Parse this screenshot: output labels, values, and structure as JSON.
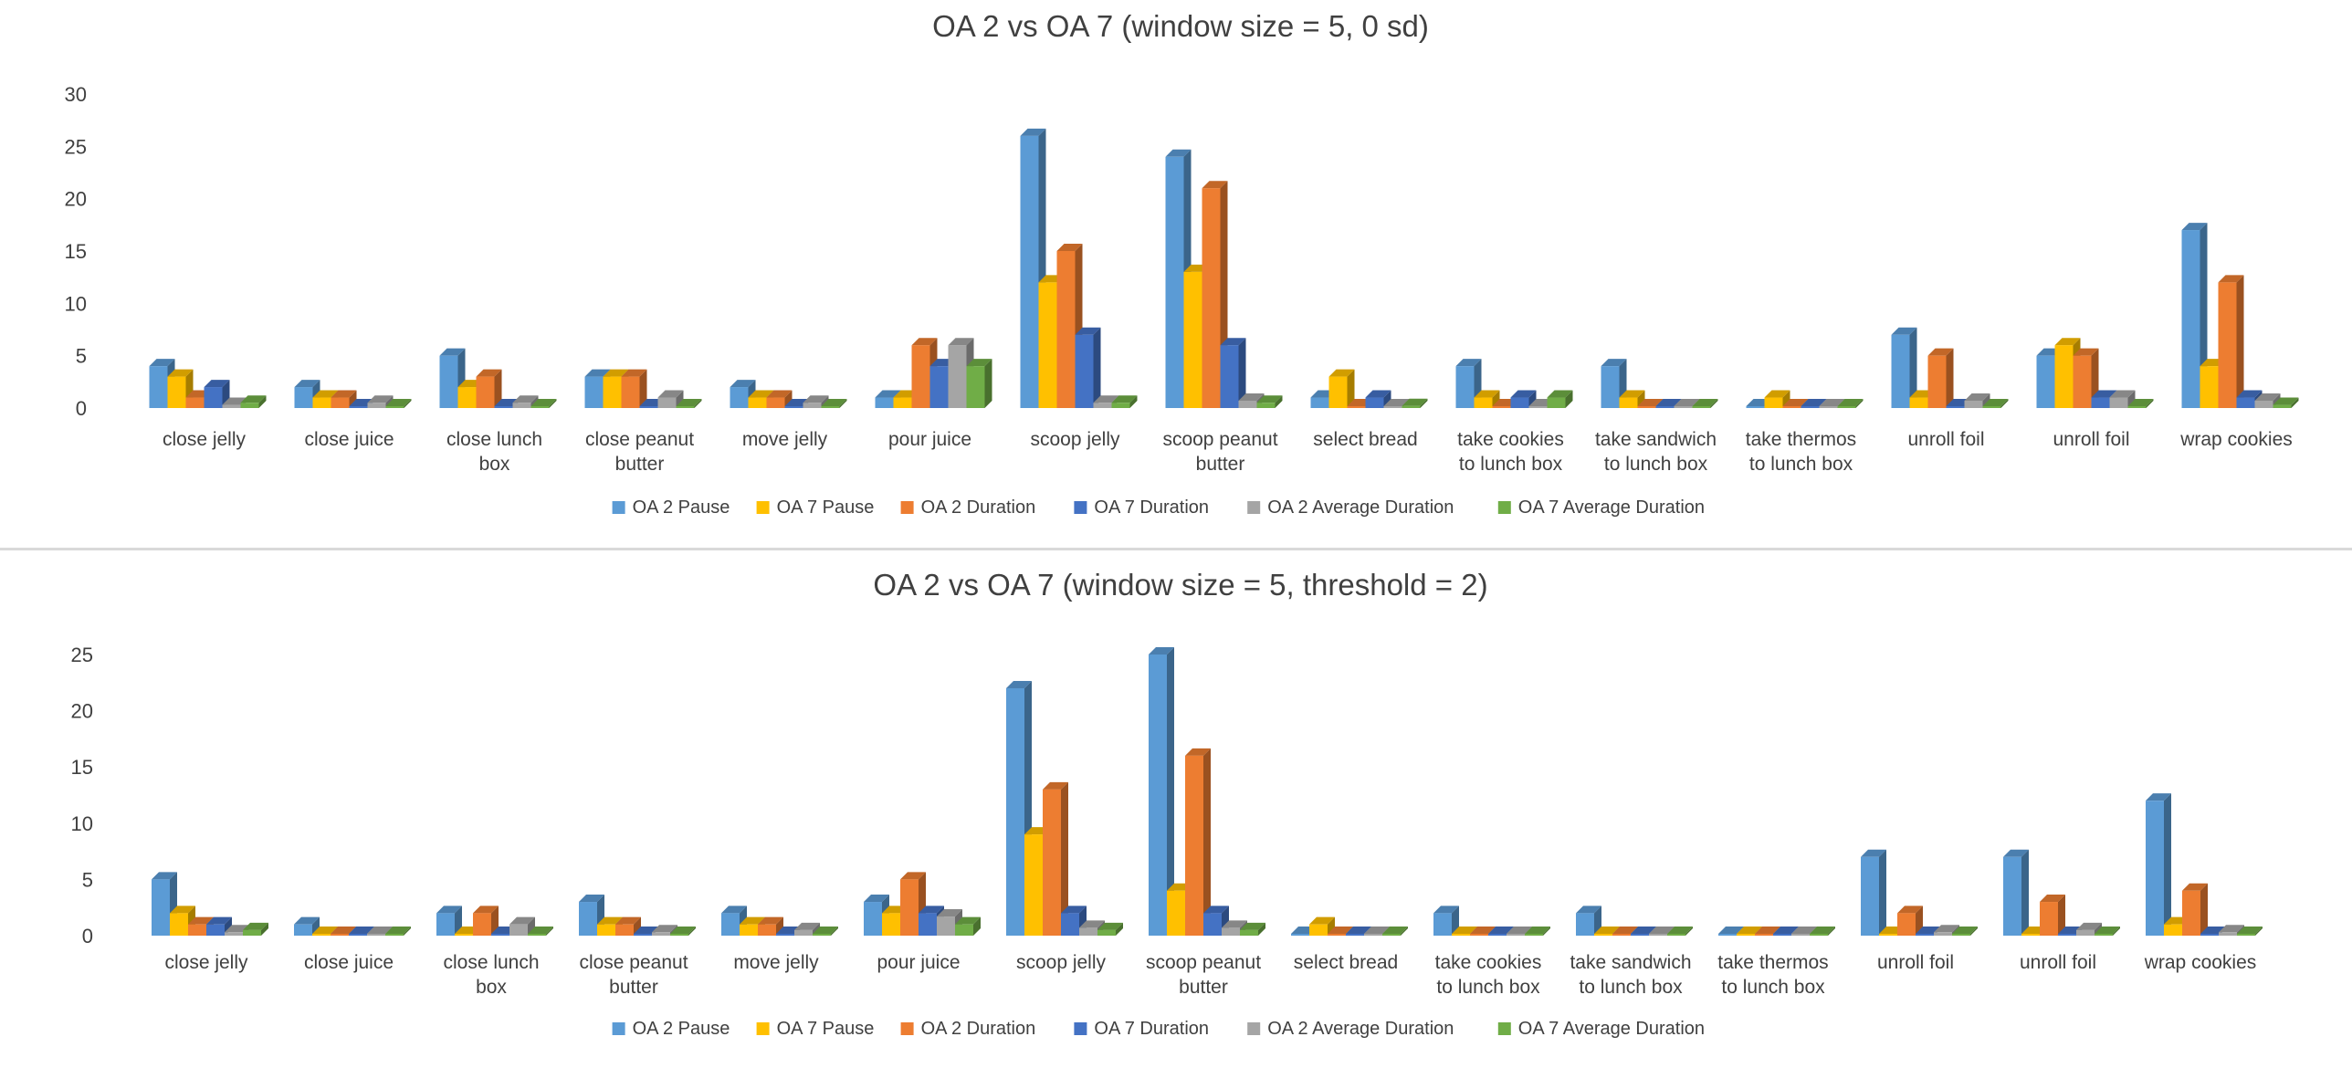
{
  "chart_data": [
    {
      "type": "bar",
      "style": "3d-clustered-column",
      "title": "OA 2 vs OA 7 (window size = 5, 0 sd)",
      "xlabel": "",
      "ylabel": "",
      "ylim": [
        0,
        30
      ],
      "yticks": [
        0,
        5,
        10,
        15,
        20,
        25,
        30
      ],
      "grid": false,
      "legend": "bottom",
      "categories": [
        "close jelly",
        "close juice",
        "close lunch box",
        "close peanut butter",
        "move jelly",
        "pour juice",
        "scoop jelly",
        "scoop peanut butter",
        "select bread",
        "take cookies to lunch box",
        "take sandwich to lunch box",
        "take thermos to lunch box",
        "unroll foil",
        "unroll foil",
        "wrap cookies"
      ],
      "category_lines": [
        [
          "close jelly"
        ],
        [
          "close juice"
        ],
        [
          "close lunch",
          "box"
        ],
        [
          "close peanut",
          "butter"
        ],
        [
          "move jelly"
        ],
        [
          "pour juice"
        ],
        [
          "scoop jelly"
        ],
        [
          "scoop peanut",
          "butter"
        ],
        [
          "select bread"
        ],
        [
          "take cookies",
          "to lunch box"
        ],
        [
          "take sandwich",
          "to lunch box"
        ],
        [
          "take thermos",
          "to lunch box"
        ],
        [
          "unroll foil"
        ],
        [
          "unroll foil"
        ],
        [
          "wrap cookies"
        ]
      ],
      "series": [
        {
          "name": "OA 2 Pause",
          "color": "#5B9BD5",
          "values": [
            4,
            2,
            5,
            3,
            2,
            1,
            26,
            24,
            1,
            4,
            4,
            0,
            7,
            5,
            17
          ]
        },
        {
          "name": "OA 7 Pause",
          "color": "#FFC000",
          "values": [
            3,
            1,
            2,
            3,
            1,
            1,
            12,
            13,
            3,
            1,
            1,
            1,
            1,
            6,
            4
          ]
        },
        {
          "name": "OA 2 Duration",
          "color": "#ED7D31",
          "values": [
            1,
            1,
            3,
            3,
            1,
            6,
            15,
            21,
            0,
            0,
            0,
            0,
            5,
            5,
            12
          ]
        },
        {
          "name": "OA 7 Duration",
          "color": "#4472C4",
          "values": [
            2,
            0,
            0,
            0,
            0,
            4,
            7,
            6,
            1,
            1,
            0,
            0,
            0,
            1,
            1
          ]
        },
        {
          "name": "OA 2 Average Duration",
          "color": "#A5A5A5",
          "values": [
            0.3,
            0.5,
            0.5,
            1,
            0.5,
            6,
            0.5,
            0.7,
            0,
            0,
            0,
            0,
            0.7,
            1,
            0.7
          ]
        },
        {
          "name": "OA 7 Average Duration",
          "color": "#70AD47",
          "values": [
            0.5,
            0,
            0,
            0,
            0,
            4,
            0.5,
            0.5,
            0.2,
            1,
            0,
            0,
            0,
            0,
            0.3
          ]
        }
      ]
    },
    {
      "type": "bar",
      "style": "3d-clustered-column",
      "title": "OA 2 vs OA 7 (window size = 5, threshold = 2)",
      "xlabel": "",
      "ylabel": "",
      "ylim": [
        0,
        25
      ],
      "yticks": [
        0,
        5,
        10,
        15,
        20,
        25
      ],
      "grid": false,
      "legend": "bottom",
      "categories": [
        "close jelly",
        "close juice",
        "close lunch box",
        "close peanut butter",
        "move jelly",
        "pour juice",
        "scoop jelly",
        "scoop peanut butter",
        "select bread",
        "take cookies to lunch box",
        "take sandwich to lunch box",
        "take thermos to lunch box",
        "unroll foil",
        "unroll foil",
        "wrap cookies"
      ],
      "category_lines": [
        [
          "close jelly"
        ],
        [
          "close juice"
        ],
        [
          "close lunch",
          "box"
        ],
        [
          "close peanut",
          "butter"
        ],
        [
          "move jelly"
        ],
        [
          "pour juice"
        ],
        [
          "scoop jelly"
        ],
        [
          "scoop peanut",
          "butter"
        ],
        [
          "select bread"
        ],
        [
          "take cookies",
          "to lunch box"
        ],
        [
          "take sandwich",
          "to lunch box"
        ],
        [
          "take thermos",
          "to lunch box"
        ],
        [
          "unroll foil"
        ],
        [
          "unroll foil"
        ],
        [
          "wrap cookies"
        ]
      ],
      "series": [
        {
          "name": "OA 2 Pause",
          "color": "#5B9BD5",
          "values": [
            5,
            1,
            2,
            3,
            2,
            3,
            22,
            25,
            0,
            2,
            2,
            0,
            7,
            7,
            12
          ]
        },
        {
          "name": "OA 7 Pause",
          "color": "#FFC000",
          "values": [
            2,
            0,
            0,
            1,
            1,
            2,
            9,
            4,
            1,
            0,
            0,
            0,
            0,
            0,
            1
          ]
        },
        {
          "name": "OA 2 Duration",
          "color": "#ED7D31",
          "values": [
            1,
            0,
            2,
            1,
            1,
            5,
            13,
            16,
            0,
            0,
            0,
            0,
            2,
            3,
            4
          ]
        },
        {
          "name": "OA 7 Duration",
          "color": "#4472C4",
          "values": [
            1,
            0,
            0,
            0,
            0,
            2,
            2,
            2,
            0,
            0,
            0,
            0,
            0,
            0,
            0
          ]
        },
        {
          "name": "OA 2 Average Duration",
          "color": "#A5A5A5",
          "values": [
            0.3,
            0,
            1,
            0.3,
            0.5,
            1.7,
            0.7,
            0.7,
            0,
            0,
            0,
            0,
            0.3,
            0.5,
            0.3
          ]
        },
        {
          "name": "OA 7 Average Duration",
          "color": "#70AD47",
          "values": [
            0.5,
            0,
            0,
            0,
            0,
            1,
            0.5,
            0.5,
            0,
            0,
            0,
            0,
            0,
            0,
            0
          ]
        }
      ]
    }
  ]
}
